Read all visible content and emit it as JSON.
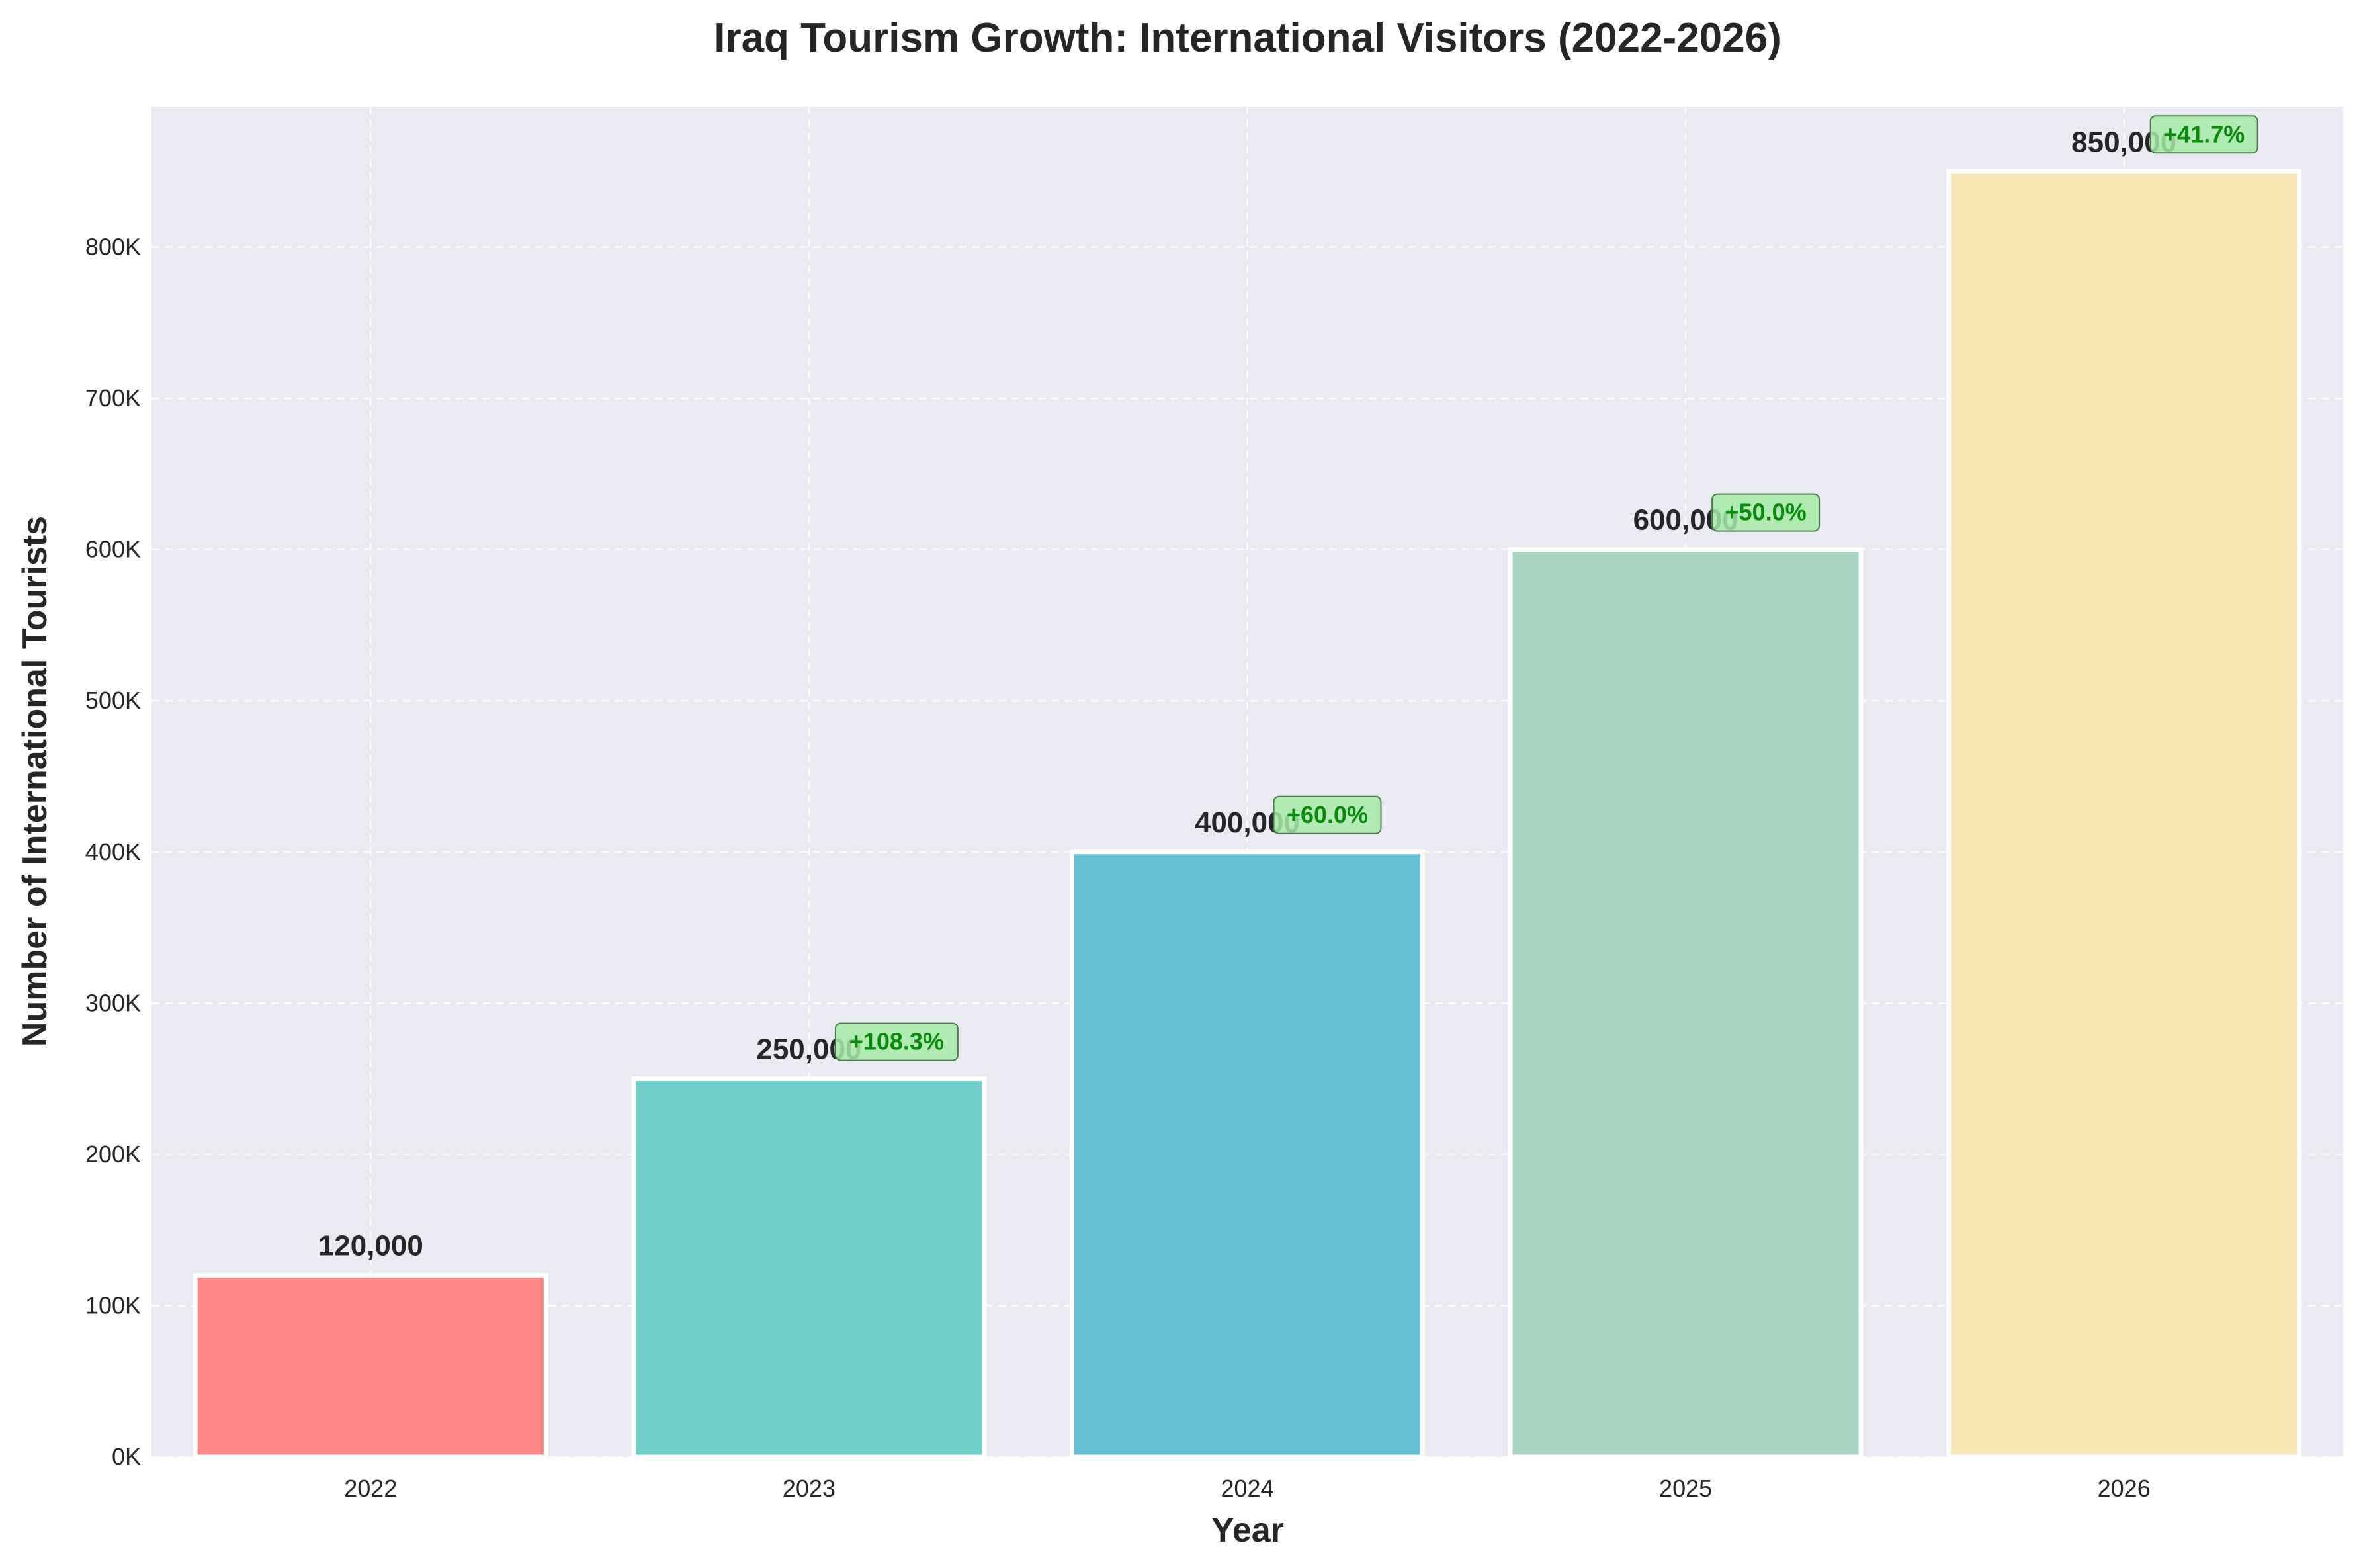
{
  "chart_data": {
    "type": "bar",
    "title": "Iraq Tourism Growth: International Visitors (2022-2026)",
    "xlabel": "Year",
    "ylabel": "Number of International Tourists",
    "categories": [
      "2022",
      "2023",
      "2024",
      "2025",
      "2026"
    ],
    "values": [
      120000,
      250000,
      400000,
      600000,
      850000
    ],
    "value_labels": [
      "120,000",
      "250,000",
      "400,000",
      "600,000",
      "850,000"
    ],
    "growth_labels": [
      "",
      "+108.3%",
      "+60.0%",
      "+50.0%",
      "+41.7%"
    ],
    "colors": [
      "#FF8787",
      "#70D1CC",
      "#66BFD4",
      "#A8D3C0",
      "#F8E7B4"
    ],
    "ylim": [
      0,
      893000
    ],
    "yticks": [
      0,
      100000,
      200000,
      300000,
      400000,
      500000,
      600000,
      700000,
      800000
    ],
    "ytick_labels": [
      "0K",
      "100K",
      "200K",
      "300K",
      "400K",
      "500K",
      "600K",
      "700K",
      "800K"
    ],
    "grid": true,
    "plot_background": "#EAEAF2",
    "growth_box_color": "#A6EBA6",
    "growth_text_color": "#0A8A0A"
  }
}
